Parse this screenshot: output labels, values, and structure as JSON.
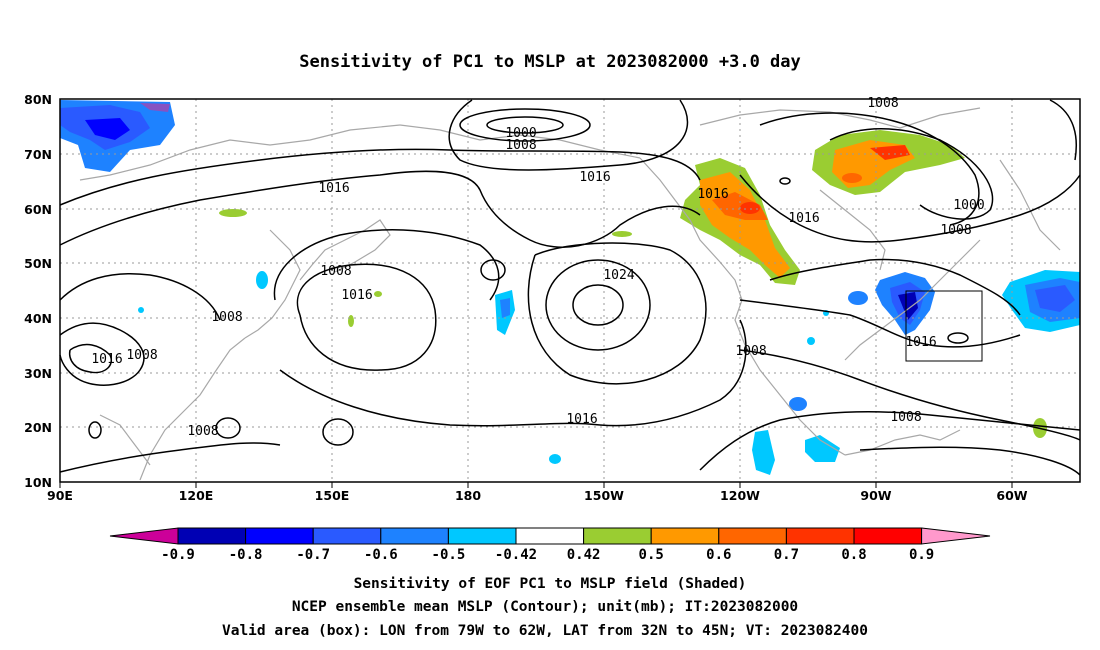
{
  "title": "Sensitivity of PC1 to MSLP at 2023082000 +3.0 day",
  "lat_labels": [
    "80N",
    "70N",
    "60N",
    "50N",
    "40N",
    "30N",
    "20N",
    "10N"
  ],
  "lon_labels": [
    "90E",
    "120E",
    "150E",
    "180",
    "150W",
    "120W",
    "90W",
    "60W"
  ],
  "colorbar": {
    "labels": [
      "-0.9",
      "-0.8",
      "-0.7",
      "-0.6",
      "-0.5",
      "-0.42",
      "0.42",
      "0.5",
      "0.6",
      "0.7",
      "0.8",
      "0.9"
    ],
    "colors": [
      "#cc0099",
      "#0000b4",
      "#0000ff",
      "#2a5aff",
      "#1e82ff",
      "#00c8ff",
      "#ffffff",
      "#9acd32",
      "#ff9900",
      "#ff6600",
      "#ff3300",
      "#ff0000",
      "#ff99cc"
    ]
  },
  "contour_labels": [
    {
      "text": "1000"
    },
    {
      "text": "1008"
    },
    {
      "text": "1016"
    },
    {
      "text": "1016"
    },
    {
      "text": "1008"
    },
    {
      "text": "1016"
    },
    {
      "text": "1008"
    },
    {
      "text": "1016"
    },
    {
      "text": "1008"
    },
    {
      "text": "1008"
    },
    {
      "text": "1024"
    },
    {
      "text": "1016"
    },
    {
      "text": "1016"
    },
    {
      "text": "1016"
    },
    {
      "text": "1008"
    },
    {
      "text": "1008"
    },
    {
      "text": "1000"
    },
    {
      "text": "1008"
    },
    {
      "text": "1016"
    },
    {
      "text": "1008"
    }
  ],
  "caption": {
    "line1": "Sensitivity of EOF PC1 to MSLP field (Shaded)",
    "line2": "NCEP ensemble mean MSLP (Contour); unit(mb); IT:2023082000",
    "line3": "Valid area (box): LON from 79W to 62W, LAT from 32N to 45N; VT: 2023082400"
  }
}
